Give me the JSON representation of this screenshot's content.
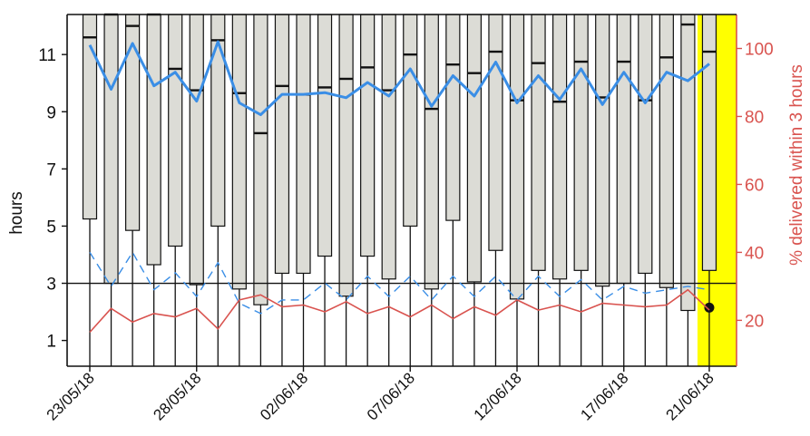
{
  "chart_data": {
    "type": "box",
    "ylabel_left": "hours",
    "ylabel_right": "% delivered within 3 hours",
    "ylim_left": [
      0.1,
      12.4
    ],
    "ylim_right": [
      6.5,
      110
    ],
    "yticks_left": [
      1,
      3,
      5,
      7,
      9,
      11
    ],
    "yticks_right": [
      20,
      40,
      60,
      80,
      100
    ],
    "x_tick_labels": [
      "23/05/18",
      "28/05/18",
      "02/06/18",
      "07/06/18",
      "12/06/18",
      "17/06/18",
      "21/06/18"
    ],
    "x_tick_index": [
      0,
      5,
      10,
      15,
      20,
      25,
      29
    ],
    "reference_line_hours": 3,
    "highlight_day_index": 29,
    "highlight_color": "#ffff00",
    "days": 30,
    "boxes": [
      {
        "q1": 5.25,
        "median": 11.6,
        "q3": 12.4
      },
      {
        "q1": 3.0,
        "median": 12.4,
        "q3": 12.4
      },
      {
        "q1": 4.85,
        "median": 12.0,
        "q3": 12.4
      },
      {
        "q1": 3.65,
        "median": 12.4,
        "q3": 12.4
      },
      {
        "q1": 4.3,
        "median": 10.5,
        "q3": 12.4
      },
      {
        "q1": 2.95,
        "median": 9.75,
        "q3": 12.4
      },
      {
        "q1": 5.0,
        "median": 11.5,
        "q3": 12.4
      },
      {
        "q1": 2.8,
        "median": 9.65,
        "q3": 12.4
      },
      {
        "q1": 2.25,
        "median": 8.25,
        "q3": 12.4
      },
      {
        "q1": 3.35,
        "median": 9.9,
        "q3": 12.4
      },
      {
        "q1": 3.35,
        "median": 9.6,
        "q3": 12.4
      },
      {
        "q1": 3.95,
        "median": 9.85,
        "q3": 12.4
      },
      {
        "q1": 2.55,
        "median": 10.15,
        "q3": 12.4
      },
      {
        "q1": 3.95,
        "median": 10.55,
        "q3": 12.4
      },
      {
        "q1": 3.15,
        "median": 9.75,
        "q3": 12.4
      },
      {
        "q1": 5.0,
        "median": 11.0,
        "q3": 12.4
      },
      {
        "q1": 2.8,
        "median": 9.1,
        "q3": 12.4
      },
      {
        "q1": 5.2,
        "median": 10.65,
        "q3": 12.4
      },
      {
        "q1": 3.05,
        "median": 10.35,
        "q3": 12.4
      },
      {
        "q1": 4.15,
        "median": 11.1,
        "q3": 12.4
      },
      {
        "q1": 2.45,
        "median": 9.4,
        "q3": 12.4
      },
      {
        "q1": 3.45,
        "median": 10.7,
        "q3": 12.4
      },
      {
        "q1": 3.15,
        "median": 9.35,
        "q3": 12.4
      },
      {
        "q1": 3.45,
        "median": 10.75,
        "q3": 12.4
      },
      {
        "q1": 2.9,
        "median": 9.5,
        "q3": 12.4
      },
      {
        "q1": 3.0,
        "median": 10.75,
        "q3": 12.4
      },
      {
        "q1": 3.35,
        "median": 9.4,
        "q3": 12.4
      },
      {
        "q1": 2.85,
        "median": 10.9,
        "q3": 12.4
      },
      {
        "q1": 2.05,
        "median": 12.05,
        "q3": 12.4
      },
      {
        "q1": 3.45,
        "median": 11.1,
        "q3": 12.4
      }
    ],
    "last_day_point_hours": 2.15,
    "series": [
      {
        "name": "",
        "axis": "right",
        "style": "solid",
        "color": "#3a8ee6",
        "values": [
          101,
          88,
          101.5,
          89,
          93,
          84.5,
          102,
          84,
          80.5,
          86.5,
          86.5,
          87,
          85.5,
          90,
          86,
          94,
          83,
          92,
          86,
          96,
          84,
          92,
          85,
          94,
          83.5,
          93,
          84,
          93,
          90.5,
          95.5
        ]
      },
      {
        "name": "",
        "axis": "right",
        "style": "dashed",
        "color": "#3a8ee6",
        "values": [
          40,
          30,
          40,
          29,
          34,
          27,
          37,
          25,
          22,
          26,
          26,
          31,
          26,
          33,
          27,
          33,
          26,
          33,
          27,
          33,
          26,
          33,
          27,
          32,
          26,
          30,
          28,
          29,
          30,
          29
        ]
      },
      {
        "name": "",
        "axis": "right",
        "style": "solid",
        "color": "#d9534f",
        "values": [
          16.5,
          23.5,
          19.5,
          22,
          21,
          23.5,
          17.5,
          26,
          27.5,
          24,
          24.5,
          22.5,
          25.5,
          22,
          24,
          21,
          24.5,
          20.5,
          24,
          21.5,
          26,
          23,
          24.5,
          22.5,
          25,
          24.5,
          24,
          24.5,
          29,
          23
        ]
      }
    ]
  }
}
